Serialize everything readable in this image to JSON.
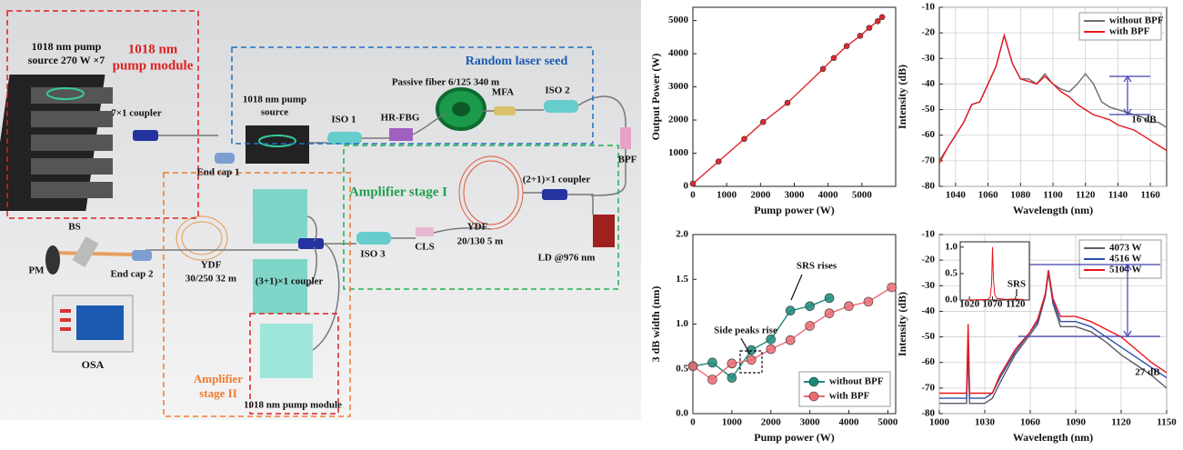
{
  "diagram": {
    "labels": [
      "1018 nm pump",
      "source 270 W ×7",
      "1018 nm",
      "pump module",
      "7×1 coupler",
      "Random laser seed",
      "Passive fiber 6/125 340 m",
      "1018 nm pump",
      "source",
      "ISO 1",
      "HR-FBG",
      "MFA",
      "ISO 2",
      "BPF",
      "End cap 1",
      "Amplifier stage I",
      "(2+1)×1 coupler",
      "YDF",
      "20/130  5 m",
      "LD @976 nm",
      "ISO 3",
      "CLS",
      "BS",
      "PM",
      "End cap 2",
      "YDF",
      "30/250 32 m",
      "(3+1)×1 coupler",
      "OSA",
      "Amplifier",
      "stage II",
      "1018 nm pump module"
    ]
  },
  "chart_data": [
    {
      "type": "line",
      "markers": true,
      "x_label": "Pump power (W)",
      "y_label": "Output Power (W)",
      "color": "#e0282e",
      "x": [
        0,
        760,
        1520,
        2080,
        2800,
        3850,
        4170,
        4550,
        4950,
        5220,
        5470,
        5600
      ],
      "values": [
        80,
        750,
        1430,
        1940,
        2520,
        3540,
        3870,
        4230,
        4540,
        4780,
        4980,
        5104
      ],
      "xlim": [
        0,
        6000
      ],
      "xticks": [
        0,
        1000,
        2000,
        3000,
        4000,
        5000
      ],
      "ylim": [
        0,
        5400
      ],
      "yticks": [
        0,
        1000,
        2000,
        3000,
        4000,
        5000
      ],
      "grid": false
    },
    {
      "type": "line",
      "x_label": "Wavelength (nm)",
      "y_label": "Intensity (dB)",
      "legend": "upper right",
      "grid": true,
      "x": [
        1030,
        1035,
        1040,
        1045,
        1050,
        1055,
        1060,
        1065,
        1070,
        1075,
        1080,
        1085,
        1090,
        1095,
        1100,
        1105,
        1110,
        1115,
        1120,
        1125,
        1130,
        1135,
        1140,
        1145,
        1150,
        1155,
        1160,
        1165,
        1170
      ],
      "series": [
        {
          "name": "without BPF",
          "color": "#6e6e6e",
          "values": [
            -70,
            -65,
            -60,
            -55,
            -48,
            -47,
            -40,
            -33,
            -21,
            -32,
            -38,
            -38,
            -40,
            -36,
            -40,
            -42,
            -43,
            -40,
            -36,
            -40,
            -47,
            -49,
            -50,
            -51,
            -52,
            -53,
            -55,
            -55,
            -57
          ]
        },
        {
          "name": "with BPF",
          "color": "#e8161e",
          "values": [
            -71,
            -65,
            -60,
            -55,
            -48,
            -47,
            -40,
            -33,
            -21,
            -32,
            -38,
            -39,
            -40,
            -37,
            -40,
            -43,
            -45,
            -48,
            -50,
            -52,
            -53,
            -54,
            -56,
            -57,
            -58,
            -60,
            -62,
            -64,
            -66
          ]
        }
      ],
      "xlim": [
        1030,
        1170
      ],
      "xticks": [
        1040,
        1060,
        1080,
        1100,
        1120,
        1140,
        1160
      ],
      "ylim": [
        -80,
        -10
      ],
      "yticks": [
        -80,
        -70,
        -60,
        -50,
        -40,
        -30,
        -20,
        -10
      ],
      "annotations": [
        "16 dB"
      ]
    },
    {
      "type": "line",
      "markers": true,
      "x_label": "Pump power (W)",
      "y_label": "3 dB width (nm)",
      "legend": "lower right",
      "grid": false,
      "series": [
        {
          "name": "without BPF",
          "color": "#1a8a7a",
          "x": [
            0,
            500,
            1000,
            1500,
            2000,
            2500,
            3000,
            3500
          ],
          "values": [
            0.53,
            0.57,
            0.4,
            0.71,
            0.83,
            1.15,
            1.2,
            1.29
          ]
        },
        {
          "name": "with BPF",
          "color": "#ec6a72",
          "x": [
            0,
            500,
            1000,
            1500,
            2000,
            2500,
            3000,
            3500,
            4000,
            4500,
            5100
          ],
          "values": [
            0.53,
            0.38,
            0.56,
            0.6,
            0.72,
            0.82,
            0.98,
            1.12,
            1.2,
            1.25,
            1.41
          ]
        }
      ],
      "xlim": [
        0,
        5200
      ],
      "xticks": [
        0,
        1000,
        2000,
        3000,
        4000,
        5000
      ],
      "ylim": [
        0,
        2
      ],
      "yticks": [
        {
          "value": 0,
          "label": "0.0"
        },
        0.5,
        {
          "value": 1,
          "label": "1.0"
        },
        1.5,
        {
          "value": 2,
          "label": "2.0"
        }
      ],
      "annotations": [
        "SRS rises",
        "Side peaks rise"
      ]
    },
    {
      "type": "line",
      "x_label": "Wavelength (nm)",
      "y_label": "Intensity (dB)",
      "legend": "upper right",
      "grid": true,
      "x": [
        1000,
        1010,
        1018,
        1019,
        1020,
        1030,
        1035,
        1040,
        1050,
        1060,
        1065,
        1070,
        1072,
        1075,
        1080,
        1090,
        1100,
        1110,
        1120,
        1130,
        1140,
        1150
      ],
      "series": [
        {
          "name": "4073 W",
          "color": "#5a5a6a",
          "values": [
            -76,
            -76,
            -76,
            -55,
            -76,
            -76,
            -74,
            -68,
            -57,
            -49,
            -45,
            -34,
            -25,
            -37,
            -46,
            -46,
            -48,
            -52,
            -57,
            -61,
            -65,
            -70
          ]
        },
        {
          "name": "4516 W",
          "color": "#2e4fa8",
          "values": [
            -74,
            -74,
            -74,
            -50,
            -74,
            -74,
            -72,
            -66,
            -56,
            -48,
            -44,
            -33,
            -24,
            -36,
            -44,
            -44,
            -46,
            -50,
            -54,
            -58,
            -62,
            -66
          ]
        },
        {
          "name": "5104 W",
          "color": "#e8161e",
          "values": [
            -72,
            -72,
            -72,
            -45,
            -72,
            -72,
            -72,
            -65,
            -55,
            -48,
            -43,
            -33,
            -24,
            -35,
            -42,
            -42,
            -44,
            -47,
            -50,
            -55,
            -60,
            -64
          ]
        }
      ],
      "xlim": [
        1000,
        1150
      ],
      "xticks": [
        1000,
        1030,
        1060,
        1090,
        1120,
        1150
      ],
      "ylim": [
        -80,
        -10
      ],
      "yticks": [
        -80,
        -70,
        -60,
        -50,
        -40,
        -30,
        -20,
        -10
      ],
      "annotations": [
        "27 dB"
      ]
    },
    {
      "type": "line",
      "grid": false,
      "color": "#e8161e",
      "x": [
        1010,
        1060,
        1065,
        1068,
        1070,
        1072,
        1075,
        1080,
        1100,
        1118,
        1140
      ],
      "values": [
        0,
        0.01,
        0.05,
        0.3,
        1.0,
        0.4,
        0.1,
        0.03,
        0.01,
        0.02,
        0.005
      ],
      "xlim": [
        1000,
        1150
      ],
      "xticks": [
        1020,
        1070,
        1120
      ],
      "ylim": [
        0,
        1.1
      ],
      "yticks": [
        {
          "value": 0,
          "label": "0.0"
        },
        0.5,
        {
          "value": 1,
          "label": "1.0"
        }
      ],
      "annotations": [
        "SRS"
      ]
    }
  ]
}
